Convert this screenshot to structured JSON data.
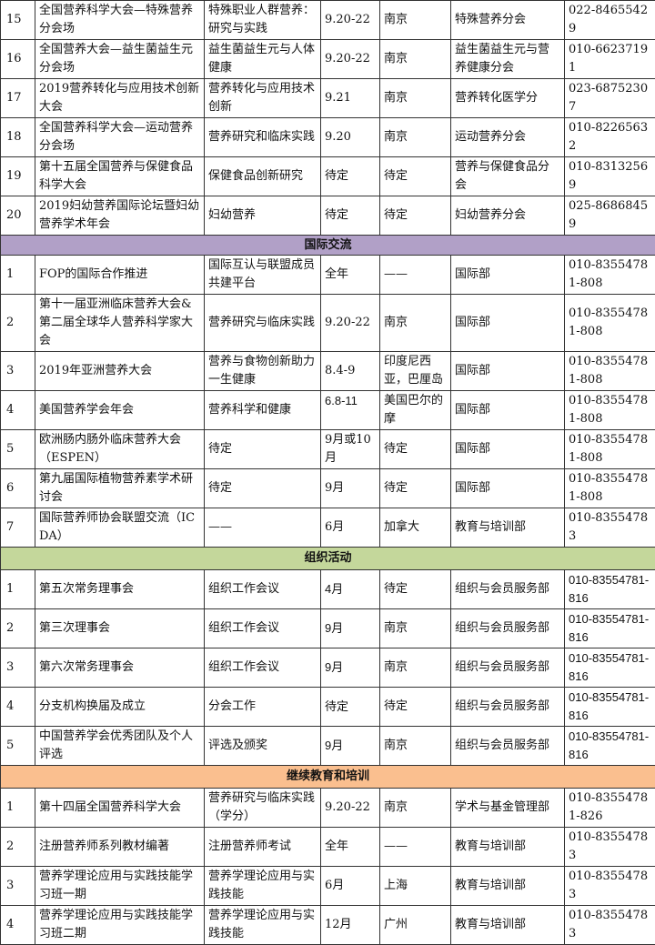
{
  "colors": {
    "intl_header": "#b1a0c7",
    "org_header": "#c4d79b",
    "edu_header": "#fabf8f"
  },
  "sections": [
    {
      "title": "",
      "rows": [
        [
          "15",
          "全国营养科学大会—特殊营养分会场",
          "特殊职业人群营养：研究与实践",
          "9.20-22",
          "南京",
          "特殊营养分会",
          "022-84655429"
        ],
        [
          "16",
          "全国营养大会—益生菌益生元分会场",
          "益生菌益生元与人体健康",
          "9.20-22",
          "南京",
          "益生菌益生元与营养健康分会",
          "010-66237191"
        ],
        [
          "17",
          "2019营养转化与应用技术创新大会",
          "营养转化与应用技术创新",
          "9.21",
          "南京",
          "营养转化医学分",
          "023-68752307"
        ],
        [
          "18",
          "全国营养科学大会—运动营养分会场",
          "营养研究和临床实践",
          "9.20",
          "南京",
          "运动营养分会",
          "010-82265632"
        ],
        [
          "19",
          "第十五届全国营养与保健食品科学大会",
          "保健食品创新研究",
          "待定",
          "待定",
          "营养与保健食品分会",
          "010-83132569"
        ],
        [
          "20",
          "2019妇幼营养国际论坛暨妇幼营养学术年会",
          "妇幼营养",
          "待定",
          "待定",
          "妇幼营养分会",
          "025-86868459"
        ]
      ]
    },
    {
      "title": "国际交流",
      "rows": [
        [
          "1",
          "FOP的国际合作推进",
          "国际互认与联盟成员共建平台",
          "全年",
          "——",
          "国际部",
          "010-83554781-808"
        ],
        [
          "2",
          "第十一届亚洲临床营养大会&第二届全球华人营养科学家大会",
          "营养研究与临床实践",
          "9.20-22",
          "南京",
          "国际部",
          "010-83554781-808"
        ],
        [
          "3",
          "2019年亚洲营养大会",
          "营养与食物创新助力一生健康",
          "8.4-9",
          "印度尼西亚，巴厘岛",
          "国际部",
          "010-83554781-808"
        ],
        [
          "4",
          "美国营养学会年会",
          "营养科学和健康",
          "6.8-11",
          "美国巴尔的摩",
          "国际部",
          "010-83554781-808"
        ],
        [
          "5",
          "欧洲肠内肠外临床营养大会（ESPEN）",
          "待定",
          "9月或10月",
          "待定",
          "国际部",
          "010-83554781-808"
        ],
        [
          "6",
          "第九届国际植物营养素学术研讨会",
          "待定",
          "9月",
          "待定",
          "国际部",
          "010-83554781-808"
        ],
        [
          "7",
          "国际营养师协会联盟交流（ICDA）",
          "——",
          "6月",
          "加拿大",
          "教育与培训部",
          "010-83554783"
        ]
      ]
    },
    {
      "title": "组织活动",
      "rows": [
        [
          "1",
          "第五次常务理事会",
          "组织工作会议",
          "4月",
          "待定",
          "组织与会员服务部",
          "010-83554781-816"
        ],
        [
          "2",
          "第三次理事会",
          "组织工作会议",
          "9月",
          "南京",
          "组织与会员服务部",
          "010-83554781-816"
        ],
        [
          "3",
          "第六次常务理事会",
          "组织工作会议",
          "9月",
          "南京",
          "组织与会员服务部",
          "010-83554781-816"
        ],
        [
          "4",
          "分支机构换届及成立",
          "分会工作",
          "待定",
          "待定",
          "组织与会员服务部",
          "010-83554781-816"
        ],
        [
          "5",
          "中国营养学会优秀团队及个人评选",
          "评选及颁奖",
          "9月",
          "南京",
          "组织与会员服务部",
          "010-83554781-816"
        ]
      ]
    },
    {
      "title": "继续教育和培训",
      "rows": [
        [
          "1",
          "第十四届全国营养科学大会",
          "营养研究与临床实践（学分）",
          "9.20-22",
          "南京",
          "学术与基金管理部",
          "010-83554781-826"
        ],
        [
          "2",
          "注册营养师系列教材编著",
          "注册营养师考试",
          "全年",
          "——",
          "教育与培训部",
          "010-83554783"
        ],
        [
          "3",
          "营养学理论应用与实践技能学习班一期",
          "营养学理论应用与实践技能",
          "6月",
          "上海",
          "教育与培训部",
          "010-83554783"
        ],
        [
          "4",
          "营养学理论应用与实践技能学习班二期",
          "营养学理论应用与实践技能",
          "12月",
          "广州",
          "教育与培训部",
          "010-83554783"
        ]
      ]
    }
  ]
}
